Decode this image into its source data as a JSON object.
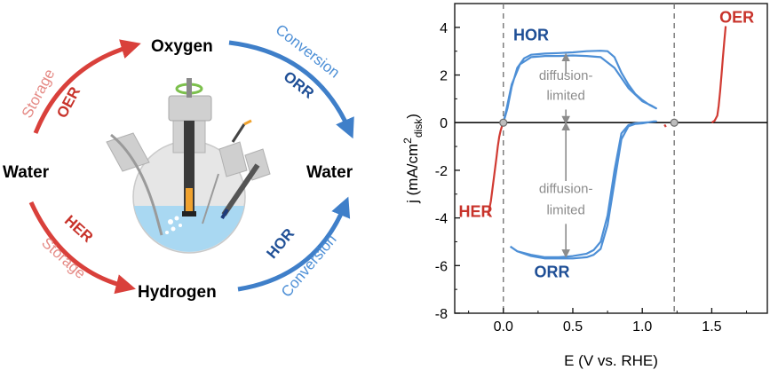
{
  "schematic": {
    "nodes": {
      "water_left": "Water",
      "water_right": "Water",
      "oxygen": "Oxygen",
      "hydrogen": "Hydrogen"
    },
    "arrows": {
      "oer": {
        "mode": "Storage",
        "reaction": "OER",
        "color": "#d9403b"
      },
      "orr": {
        "mode": "Conversion",
        "reaction": "ORR",
        "color": "#3f7fc9"
      },
      "her": {
        "mode": "Storage",
        "reaction": "HER",
        "color": "#d9403b"
      },
      "hor": {
        "mode": "Conversion",
        "reaction": "HOR",
        "color": "#3f7fc9"
      }
    },
    "cell_icon": "electrochemical-cell-icon"
  },
  "chart_data": {
    "type": "line",
    "xlabel": "E (V vs. RHE)",
    "ylabel": "j (mA/cm",
    "ylabel_sup": "2",
    "ylabel_sub": "disk",
    "ylabel_close": ")",
    "xlim": [
      -0.35,
      1.9
    ],
    "ylim": [
      -8,
      5
    ],
    "xticks": [
      0.0,
      0.5,
      1.0,
      1.5
    ],
    "xtick_labels": [
      "0.0",
      "0.5",
      "1.0",
      "1.5"
    ],
    "yticks": [
      -8,
      -6,
      -4,
      -2,
      0,
      2,
      4
    ],
    "ytick_labels": [
      "-8",
      "-6",
      "-4",
      "-2",
      "0",
      "2",
      "4"
    ],
    "vlines": [
      0.0,
      1.23
    ],
    "equilibrium_markers": [
      {
        "x": 0.0,
        "y": 0
      },
      {
        "x": 1.23,
        "y": 0
      }
    ],
    "colors": {
      "hor_orr": "#4d8fd6",
      "her_oer": "#d13b33",
      "text_red": "#c8332b",
      "text_blue": "#1f4f96",
      "guide": "#8c8c8c"
    },
    "annotations": {
      "HOR": "HOR",
      "ORR": "ORR",
      "HER": "HER",
      "OER": "OER",
      "diffusion_top_1": "diffusion-",
      "diffusion_top_2": "limited",
      "diffusion_bottom_1": "diffusion-",
      "diffusion_bottom_2": "limited"
    },
    "series": [
      {
        "name": "HOR",
        "color": "#4d8fd6",
        "x": [
          0.0,
          0.03,
          0.06,
          0.1,
          0.15,
          0.2,
          0.3,
          0.4,
          0.5,
          0.6,
          0.7,
          0.75,
          0.8,
          0.85,
          0.9,
          0.95,
          1.0,
          1.05,
          1.1,
          1.07,
          1.0,
          0.9,
          0.8,
          0.7,
          0.6,
          0.5,
          0.4,
          0.3,
          0.2,
          0.12,
          0.06,
          0.02,
          0.0
        ],
        "y": [
          0.0,
          0.6,
          1.5,
          2.3,
          2.7,
          2.85,
          2.9,
          2.92,
          2.95,
          3.0,
          3.02,
          3.0,
          2.75,
          2.1,
          1.6,
          1.2,
          0.95,
          0.75,
          0.6,
          0.7,
          0.9,
          1.45,
          2.3,
          2.75,
          2.8,
          2.82,
          2.8,
          2.8,
          2.75,
          2.45,
          1.6,
          0.5,
          0.0
        ]
      },
      {
        "name": "ORR",
        "color": "#4d8fd6",
        "x": [
          0.05,
          0.1,
          0.2,
          0.3,
          0.4,
          0.5,
          0.6,
          0.65,
          0.7,
          0.75,
          0.8,
          0.85,
          0.9,
          0.95,
          1.0,
          1.05,
          1.08,
          1.1,
          1.05,
          1.0,
          0.95,
          0.9,
          0.85,
          0.8,
          0.75,
          0.7,
          0.65,
          0.6,
          0.5,
          0.4,
          0.3,
          0.2,
          0.1
        ],
        "y": [
          -5.2,
          -5.4,
          -5.6,
          -5.7,
          -5.7,
          -5.7,
          -5.65,
          -5.55,
          -5.3,
          -4.3,
          -2.5,
          -0.7,
          -0.15,
          -0.05,
          -0.03,
          0.02,
          0.05,
          0.05,
          0.02,
          0.0,
          -0.03,
          -0.1,
          -0.45,
          -2.0,
          -3.9,
          -5.0,
          -5.35,
          -5.5,
          -5.6,
          -5.65,
          -5.65,
          -5.55,
          -5.4
        ]
      },
      {
        "name": "HER",
        "color": "#d13b33",
        "x": [
          -0.11,
          -0.09,
          -0.07,
          -0.05,
          -0.04,
          -0.03,
          -0.02,
          -0.01,
          0.0,
          0.01
        ],
        "y": [
          -3.9,
          -3.3,
          -2.4,
          -1.5,
          -1.0,
          -0.6,
          -0.35,
          -0.15,
          -0.02,
          0.0
        ]
      },
      {
        "name": "OER",
        "color": "#d13b33",
        "x": [
          1.5,
          1.52,
          1.54,
          1.55,
          1.56,
          1.57,
          1.58,
          1.59,
          1.6
        ],
        "y": [
          0.0,
          0.08,
          0.3,
          0.7,
          1.3,
          2.0,
          2.7,
          3.4,
          4.05
        ]
      },
      {
        "name": "glitch",
        "color": "#d13b33",
        "x": [
          1.16,
          1.17
        ],
        "y": [
          -0.08,
          -0.18
        ]
      }
    ]
  }
}
